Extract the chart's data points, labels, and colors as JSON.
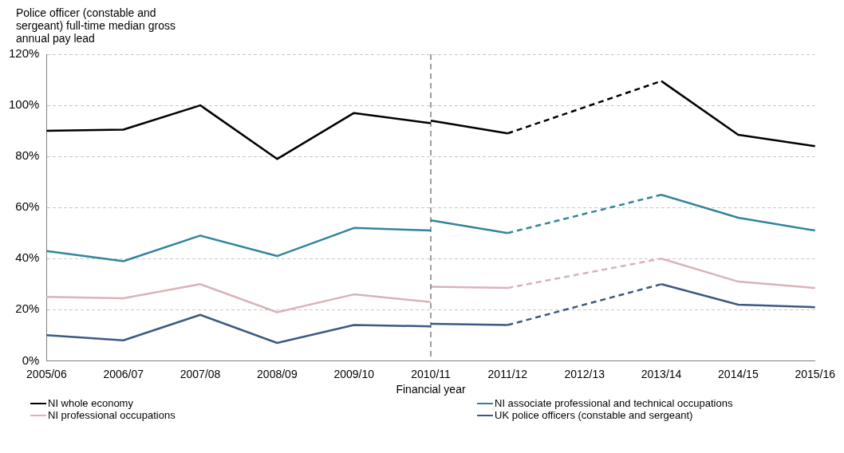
{
  "chart_data": {
    "type": "line",
    "ylabel": "Police officer (constable and sergeant) full-time median gross annual pay lead",
    "xlabel": "Financial year",
    "categories": [
      "2005/06",
      "2006/07",
      "2007/08",
      "2008/09",
      "2009/10",
      "2010/11",
      "2011/12",
      "2012/13",
      "2013/14",
      "2014/15",
      "2015/16"
    ],
    "ylim": [
      0,
      120
    ],
    "yticks": [
      {
        "value": 0,
        "label": "0%"
      },
      {
        "value": 20,
        "label": "20%"
      },
      {
        "value": 40,
        "label": "40%"
      },
      {
        "value": 60,
        "label": "60%"
      },
      {
        "value": 80,
        "label": "80%"
      },
      {
        "value": 100,
        "label": "100%"
      },
      {
        "value": 120,
        "label": "120%"
      }
    ],
    "grid": "y",
    "legend": "bottom",
    "marker": "none",
    "ref_lines": [
      {
        "axis": "x",
        "value": "2010/11",
        "color": "#404040",
        "line_style": "dashed"
      }
    ],
    "series": [
      {
        "color": "#000000",
        "values": [
          90,
          90.5,
          100,
          79,
          97,
          93,
          null,
          null,
          null,
          null,
          null
        ]
      },
      {
        "name": "NI whole economy",
        "color": "#000000",
        "values": [
          null,
          null,
          null,
          null,
          null,
          94,
          89,
          null,
          109.5,
          88.5,
          84
        ]
      },
      {
        "color": "#31859c",
        "values": [
          43,
          39,
          49,
          41,
          52,
          51,
          null,
          null,
          null,
          null,
          null
        ]
      },
      {
        "name": "NI associate professional and technical occupations",
        "color": "#31859c",
        "values": [
          null,
          null,
          null,
          null,
          null,
          55,
          50,
          null,
          65,
          56,
          51
        ]
      },
      {
        "color": "#d9b3b8",
        "values": [
          25,
          24.5,
          30,
          19,
          26,
          23,
          null,
          null,
          null,
          null,
          null
        ]
      },
      {
        "name": "NI professional occupations",
        "color": "#d9b3b8",
        "values": [
          null,
          null,
          null,
          null,
          null,
          29,
          28.5,
          null,
          40,
          31,
          28.5
        ]
      },
      {
        "color": "#3b5a82",
        "values": [
          10,
          8,
          18,
          7,
          14,
          13.5,
          null,
          null,
          null,
          null,
          null
        ]
      },
      {
        "name": "UK police officers (constable and sergeant)",
        "color": "#3b5a82",
        "values": [
          null,
          null,
          null,
          null,
          null,
          14.5,
          14,
          null,
          30,
          22,
          21
        ]
      }
    ]
  }
}
